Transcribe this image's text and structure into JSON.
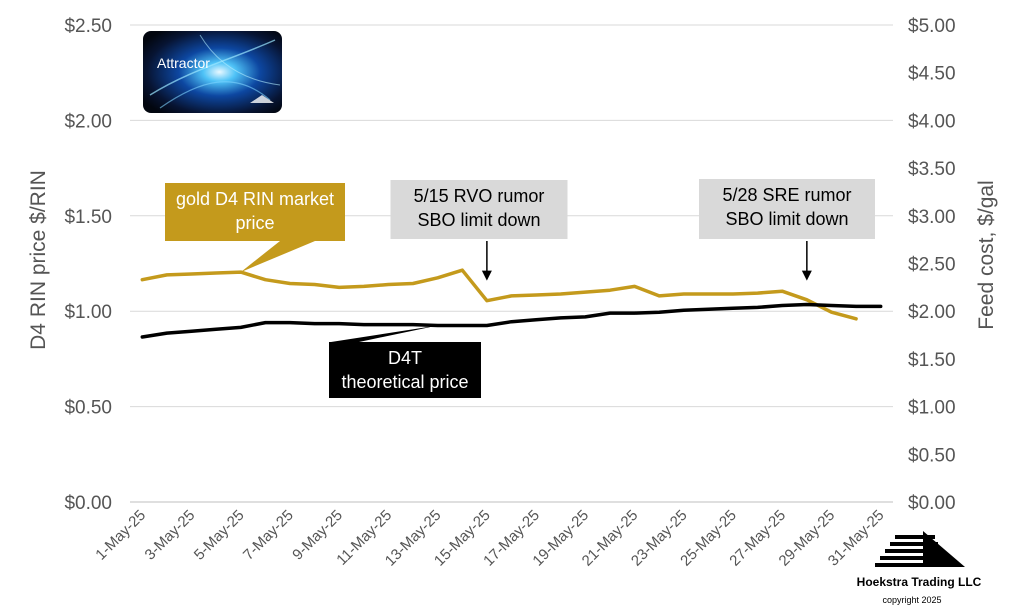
{
  "chart_data": {
    "type": "line",
    "x": [
      "1-May-25",
      "2-May-25",
      "3-May-25",
      "4-May-25",
      "5-May-25",
      "6-May-25",
      "7-May-25",
      "8-May-25",
      "9-May-25",
      "10-May-25",
      "11-May-25",
      "12-May-25",
      "13-May-25",
      "14-May-25",
      "15-May-25",
      "16-May-25",
      "17-May-25",
      "18-May-25",
      "19-May-25",
      "20-May-25",
      "21-May-25",
      "22-May-25",
      "23-May-25",
      "24-May-25",
      "25-May-25",
      "26-May-25",
      "27-May-25",
      "28-May-25",
      "29-May-25",
      "30-May-25",
      "31-May-25"
    ],
    "xtick_labels": [
      "1-May-25",
      "3-May-25",
      "5-May-25",
      "7-May-25",
      "9-May-25",
      "11-May-25",
      "13-May-25",
      "15-May-25",
      "17-May-25",
      "19-May-25",
      "21-May-25",
      "23-May-25",
      "25-May-25",
      "27-May-25",
      "29-May-25",
      "31-May-25"
    ],
    "series": [
      {
        "name": "gold D4 RIN market price",
        "axis": "left",
        "color": "#c49a1c",
        "points": [
          [
            "1-May-25",
            1.165
          ],
          [
            "2-May-25",
            1.19
          ],
          [
            "3-May-25",
            1.195
          ],
          [
            "4-May-25",
            1.2
          ],
          [
            "5-May-25",
            1.205
          ],
          [
            "6-May-25",
            1.165
          ],
          [
            "7-May-25",
            1.145
          ],
          [
            "8-May-25",
            1.14
          ],
          [
            "9-May-25",
            1.125
          ],
          [
            "10-May-25",
            1.13
          ],
          [
            "11-May-25",
            1.14
          ],
          [
            "12-May-25",
            1.145
          ],
          [
            "13-May-25",
            1.175
          ],
          [
            "14-May-25",
            1.215
          ],
          [
            "15-May-25",
            1.055
          ],
          [
            "16-May-25",
            1.08
          ],
          [
            "17-May-25",
            1.085
          ],
          [
            "18-May-25",
            1.09
          ],
          [
            "19-May-25",
            1.1
          ],
          [
            "20-May-25",
            1.11
          ],
          [
            "21-May-25",
            1.13
          ],
          [
            "22-May-25",
            1.08
          ],
          [
            "23-May-25",
            1.09
          ],
          [
            "24-May-25",
            1.09
          ],
          [
            "25-May-25",
            1.09
          ],
          [
            "26-May-25",
            1.095
          ],
          [
            "27-May-25",
            1.105
          ],
          [
            "28-May-25",
            1.06
          ],
          [
            "29-May-25",
            0.995
          ],
          [
            "30-May-25",
            0.96
          ]
        ]
      },
      {
        "name": "D4T theoretical price",
        "axis": "left",
        "color": "#000000",
        "points": [
          [
            "1-May-25",
            0.865
          ],
          [
            "2-May-25",
            0.885
          ],
          [
            "3-May-25",
            0.895
          ],
          [
            "4-May-25",
            0.905
          ],
          [
            "5-May-25",
            0.915
          ],
          [
            "6-May-25",
            0.94
          ],
          [
            "7-May-25",
            0.94
          ],
          [
            "8-May-25",
            0.935
          ],
          [
            "9-May-25",
            0.935
          ],
          [
            "10-May-25",
            0.93
          ],
          [
            "11-May-25",
            0.93
          ],
          [
            "12-May-25",
            0.93
          ],
          [
            "13-May-25",
            0.925
          ],
          [
            "14-May-25",
            0.925
          ],
          [
            "15-May-25",
            0.925
          ],
          [
            "16-May-25",
            0.945
          ],
          [
            "17-May-25",
            0.955
          ],
          [
            "18-May-25",
            0.965
          ],
          [
            "19-May-25",
            0.97
          ],
          [
            "20-May-25",
            0.99
          ],
          [
            "21-May-25",
            0.99
          ],
          [
            "22-May-25",
            0.995
          ],
          [
            "23-May-25",
            1.005
          ],
          [
            "24-May-25",
            1.01
          ],
          [
            "25-May-25",
            1.015
          ],
          [
            "26-May-25",
            1.02
          ],
          [
            "27-May-25",
            1.03
          ],
          [
            "28-May-25",
            1.035
          ],
          [
            "29-May-25",
            1.03
          ],
          [
            "30-May-25",
            1.025
          ],
          [
            "31-May-25",
            1.025
          ]
        ]
      }
    ],
    "ylabel": "D4 RIN price $/RIN",
    "ylim": [
      0,
      2.5
    ],
    "yticks": [
      "$0.00",
      "$0.50",
      "$1.00",
      "$1.50",
      "$2.00",
      "$2.50"
    ],
    "y2label": "Feed cost, $/gal",
    "y2lim": [
      0,
      5
    ],
    "y2ticks": [
      "$0.00",
      "$0.50",
      "$1.00",
      "$1.50",
      "$2.00",
      "$2.50",
      "$3.00",
      "$3.50",
      "$4.00",
      "$4.50",
      "$5.00"
    ],
    "grid": true,
    "annotations": [
      {
        "lines": [
          "gold D4 RIN market",
          "price"
        ],
        "style": "gold",
        "points_to": [
          "5-May-25",
          1.205
        ]
      },
      {
        "lines": [
          "5/15 RVO rumor",
          "SBO limit down"
        ],
        "style": "gray",
        "arrow_at": [
          "15-May-25",
          1.15
        ]
      },
      {
        "lines": [
          "5/28 SRE rumor",
          "SBO limit down"
        ],
        "style": "gray",
        "arrow_at": [
          "28-May-25",
          1.15
        ]
      },
      {
        "lines": [
          "D4T",
          "theoretical price"
        ],
        "style": "black",
        "points_to": [
          "13-May-25",
          0.925
        ]
      }
    ]
  },
  "logo_top": {
    "text": "Attractor"
  },
  "logo_bottom": {
    "company": "Hoekstra Trading LLC",
    "copyright": "copyright 2025"
  }
}
